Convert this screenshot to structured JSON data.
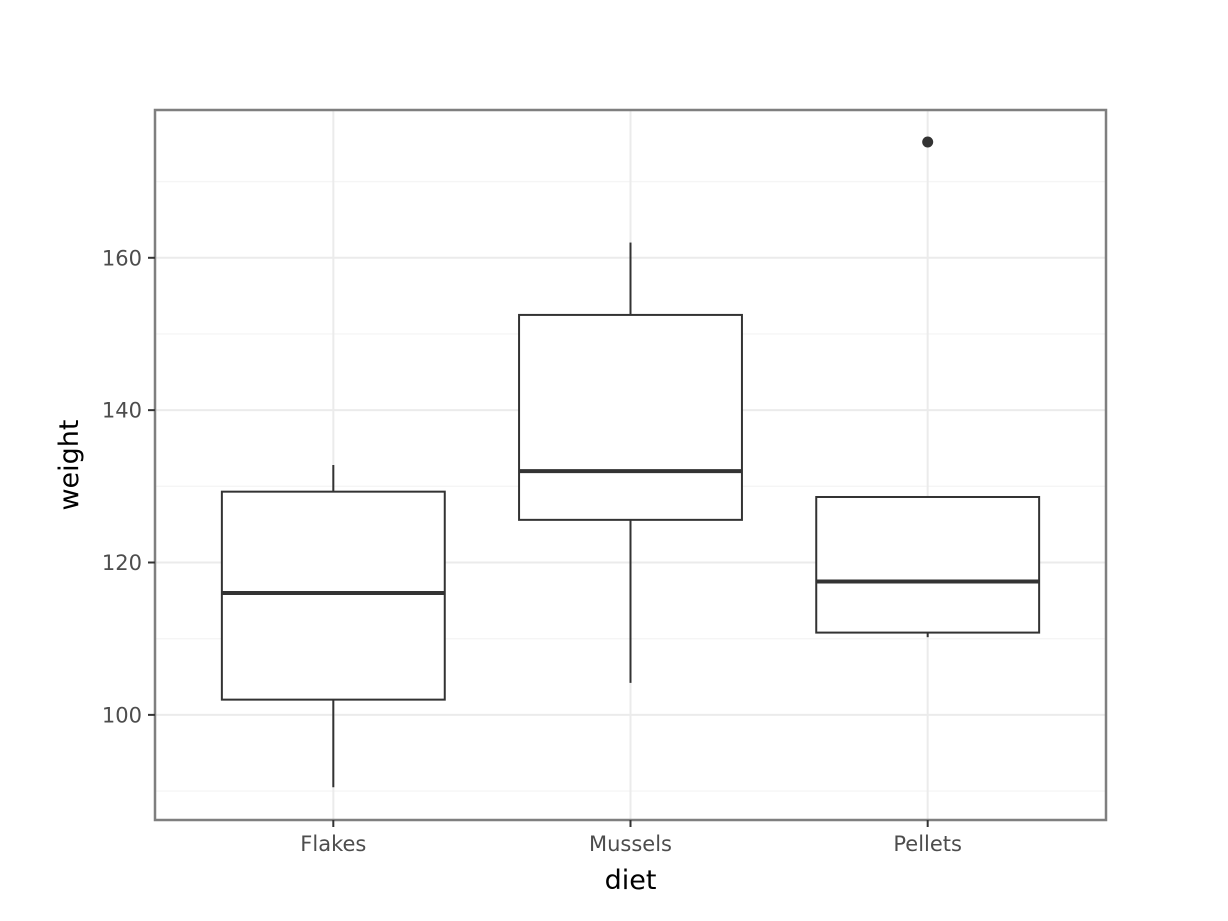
{
  "chart_data": {
    "type": "boxplot",
    "title": "",
    "xlabel": "diet",
    "ylabel": "weight",
    "categories": [
      "Flakes",
      "Mussels",
      "Pellets"
    ],
    "boxes": [
      {
        "category": "Flakes",
        "whisker_low": 90.5,
        "q1": 102.0,
        "median": 116.0,
        "q3": 129.3,
        "whisker_high": 132.8,
        "outliers": []
      },
      {
        "category": "Mussels",
        "whisker_low": 104.2,
        "q1": 125.6,
        "median": 132.0,
        "q3": 152.5,
        "whisker_high": 162.0,
        "outliers": []
      },
      {
        "category": "Pellets",
        "whisker_low": 110.2,
        "q1": 110.8,
        "median": 117.5,
        "q3": 128.6,
        "whisker_high": 128.6,
        "outliers": [
          175.2
        ]
      }
    ],
    "ylim": [
      86.2,
      179.4
    ],
    "yticks": [
      100,
      120,
      140,
      160
    ],
    "y_minor_ticks": [
      90,
      110,
      130,
      150,
      170
    ],
    "grid": true,
    "theme": "bw",
    "colors": {
      "box_stroke": "#333333",
      "grid_major": "#ebebeb",
      "grid_minor": "#f5f5f5",
      "panel_border": "#7f7f7f",
      "tick_text": "#4d4d4d"
    }
  }
}
